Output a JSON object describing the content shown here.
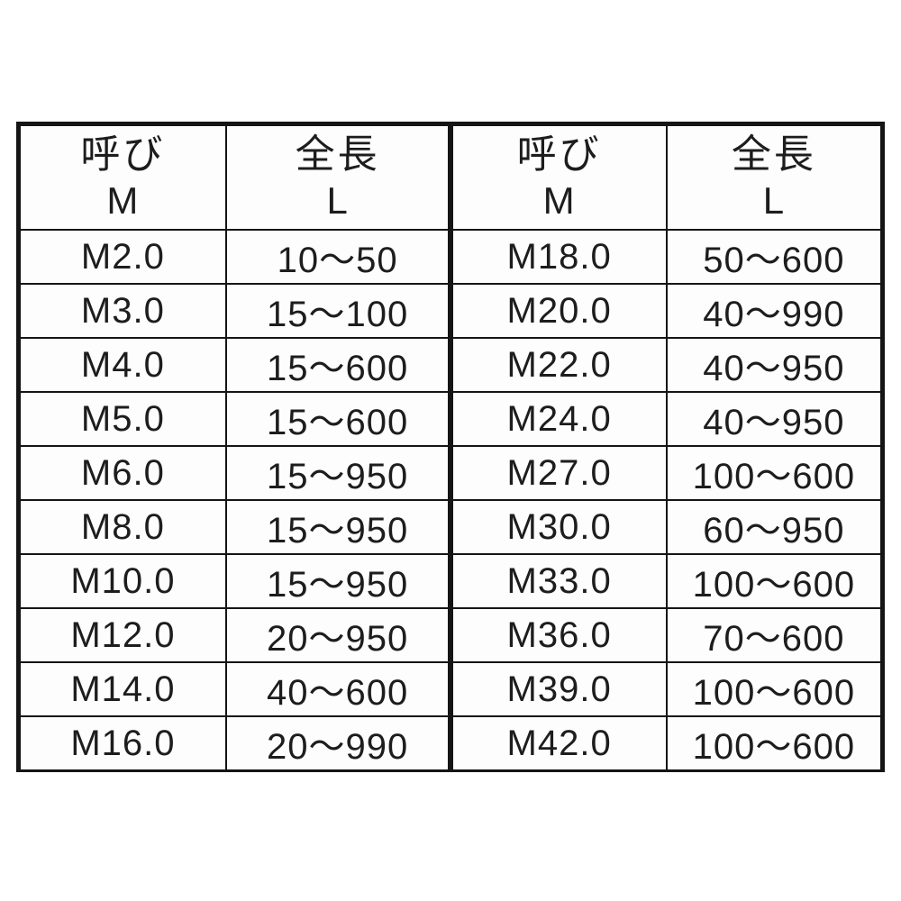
{
  "table": {
    "left": {
      "header": {
        "name_kanji": "呼び",
        "name_letter": "M",
        "length_kanji": "全長",
        "length_letter": "L"
      },
      "rows": [
        {
          "m": "M2.0",
          "l": "10〜50"
        },
        {
          "m": "M3.0",
          "l": "15〜100"
        },
        {
          "m": "M4.0",
          "l": "15〜600"
        },
        {
          "m": "M5.0",
          "l": "15〜600"
        },
        {
          "m": "M6.0",
          "l": "15〜950"
        },
        {
          "m": "M8.0",
          "l": "15〜950"
        },
        {
          "m": "M10.0",
          "l": "15〜950"
        },
        {
          "m": "M12.0",
          "l": "20〜950"
        },
        {
          "m": "M14.0",
          "l": "40〜600"
        },
        {
          "m": "M16.0",
          "l": "20〜990"
        }
      ]
    },
    "right": {
      "header": {
        "name_kanji": "呼び",
        "name_letter": "M",
        "length_kanji": "全長",
        "length_letter": "L"
      },
      "rows": [
        {
          "m": "M18.0",
          "l": "50〜600"
        },
        {
          "m": "M20.0",
          "l": "40〜990"
        },
        {
          "m": "M22.0",
          "l": "40〜950"
        },
        {
          "m": "M24.0",
          "l": "40〜950"
        },
        {
          "m": "M27.0",
          "l": "100〜600"
        },
        {
          "m": "M30.0",
          "l": "60〜950"
        },
        {
          "m": "M33.0",
          "l": "100〜600"
        },
        {
          "m": "M36.0",
          "l": "70〜600"
        },
        {
          "m": "M39.0",
          "l": "100〜600"
        },
        {
          "m": "M42.0",
          "l": "100〜600"
        }
      ]
    },
    "colors": {
      "line": "#151515",
      "text": "#1d1d1d",
      "background": "#ffffff"
    }
  }
}
